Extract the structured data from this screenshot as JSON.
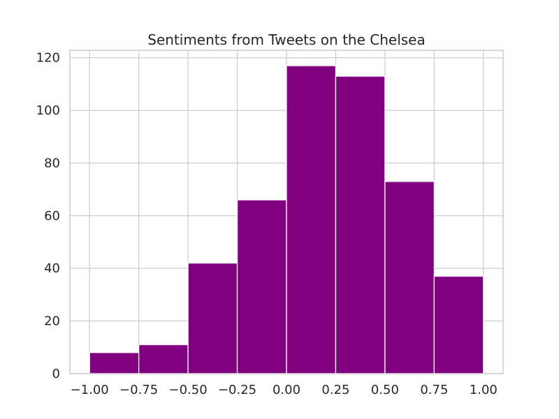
{
  "chart_data": {
    "type": "bar",
    "title": "Sentiments from Tweets on the Chelsea",
    "xlabel": "",
    "ylabel": "",
    "bar_color": "#800080",
    "grid": true,
    "bins": [
      {
        "start": -1.0,
        "end": -0.75,
        "count": 8
      },
      {
        "start": -0.75,
        "end": -0.5,
        "count": 11
      },
      {
        "start": -0.5,
        "end": -0.25,
        "count": 42
      },
      {
        "start": -0.25,
        "end": 0.0,
        "count": 66
      },
      {
        "start": 0.0,
        "end": 0.25,
        "count": 117
      },
      {
        "start": 0.25,
        "end": 0.5,
        "count": 113
      },
      {
        "start": 0.5,
        "end": 0.75,
        "count": 73
      },
      {
        "start": 0.75,
        "end": 1.0,
        "count": 37
      }
    ],
    "xlim": [
      -1.1,
      1.1
    ],
    "ylim": [
      0,
      122.85
    ],
    "x_ticks": [
      -1.0,
      -0.75,
      -0.5,
      -0.25,
      0.0,
      0.25,
      0.5,
      0.75,
      1.0
    ],
    "x_tick_labels": [
      "−1.00",
      "−0.75",
      "−0.50",
      "−0.25",
      "0.00",
      "0.25",
      "0.50",
      "0.75",
      "1.00"
    ],
    "y_ticks": [
      0,
      20,
      40,
      60,
      80,
      100,
      120
    ],
    "y_tick_labels": [
      "0",
      "20",
      "40",
      "60",
      "80",
      "100",
      "120"
    ]
  }
}
